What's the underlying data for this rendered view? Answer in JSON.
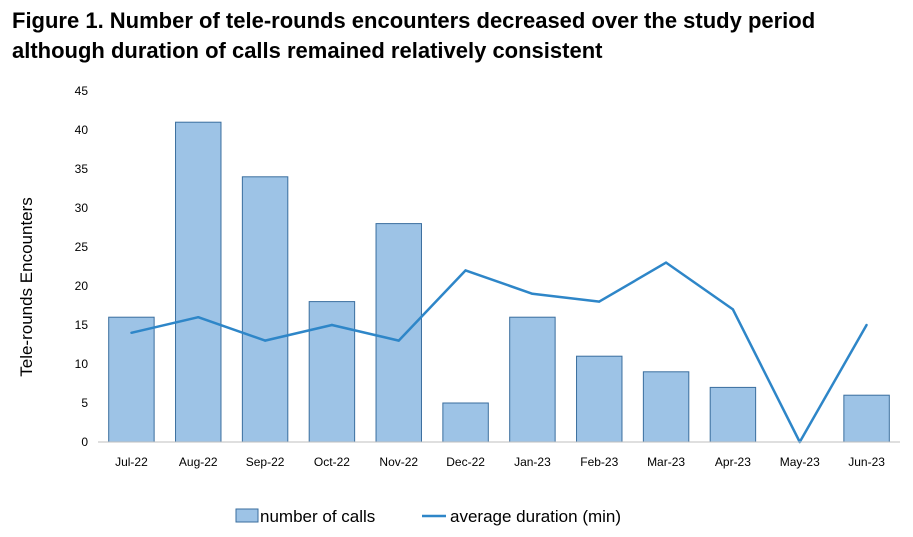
{
  "figure": {
    "title": "Figure 1. Number of tele-rounds encounters decreased over the study period although duration of calls remained relatively consistent"
  },
  "chart_data": {
    "type": "bar",
    "categories": [
      "Jul-22",
      "Aug-22",
      "Sep-22",
      "Oct-22",
      "Nov-22",
      "Dec-22",
      "Jan-23",
      "Feb-23",
      "Mar-23",
      "Apr-23",
      "May-23",
      "Jun-23"
    ],
    "series": [
      {
        "name": "number of calls",
        "type": "bar",
        "values": [
          16,
          41,
          34,
          18,
          28,
          5,
          16,
          11,
          9,
          7,
          null,
          6
        ],
        "color": "#9dc3e6",
        "stroke": "#3a6e9e"
      },
      {
        "name": "average duration (min)",
        "type": "line",
        "values": [
          14,
          16,
          13,
          15,
          13,
          22,
          19,
          18,
          23,
          17,
          0,
          15
        ],
        "color": "#2e86c8"
      }
    ],
    "ylabel": "Tele-rounds Encounters",
    "xlabel": "",
    "ylim": [
      0,
      45
    ],
    "yticks": [
      0,
      5,
      10,
      15,
      20,
      25,
      30,
      35,
      40,
      45
    ],
    "grid": false,
    "legend": "bottom-center"
  }
}
